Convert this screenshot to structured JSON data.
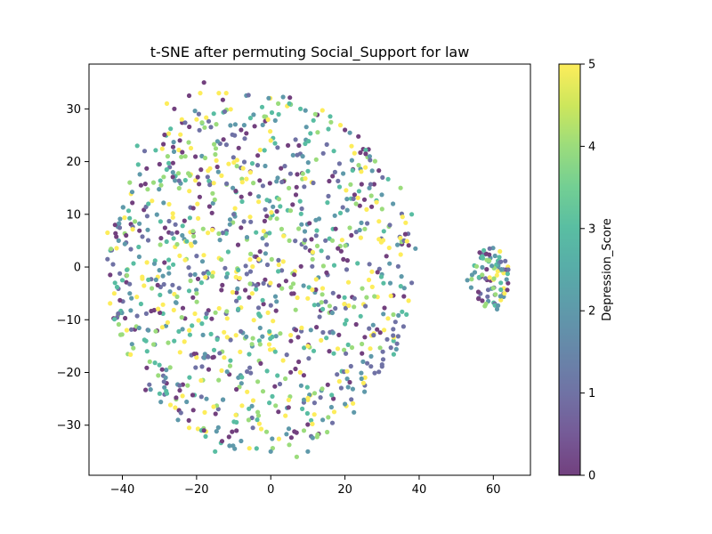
{
  "chart_data": {
    "type": "scatter",
    "title": "t-SNE after permuting Social_Support for law",
    "xlabel": "",
    "ylabel": "",
    "xlim": [
      -49,
      70
    ],
    "ylim": [
      -39.5,
      38.5
    ],
    "x_ticks": [
      -40,
      -20,
      0,
      20,
      40,
      60
    ],
    "y_ticks": [
      -30,
      -20,
      -10,
      0,
      10,
      20,
      30
    ],
    "grid": false,
    "colorbar": {
      "label": "Depression_Score",
      "colormap": "viridis",
      "range": [
        0,
        5
      ],
      "ticks": [
        0,
        1,
        2,
        3,
        4,
        5
      ]
    },
    "marker_alpha": 0.75,
    "clusters": [
      {
        "name": "main",
        "center": [
          -3,
          -1
        ],
        "rx": 41,
        "ry": 34,
        "count": 1050
      },
      {
        "name": "right",
        "center": [
          59,
          -2
        ],
        "rx": 5.5,
        "ry": 6,
        "count": 75
      }
    ],
    "points": [
      [
        -44,
        6.5,
        5
      ],
      [
        -44,
        1.5,
        1
      ],
      [
        -42,
        -3,
        3
      ],
      [
        -41,
        5,
        2
      ],
      [
        -40,
        -2.5,
        3
      ],
      [
        -39,
        6,
        0
      ],
      [
        -36,
        23,
        3
      ],
      [
        -35,
        15.5,
        0
      ],
      [
        -34,
        22,
        1
      ],
      [
        -33,
        12,
        3
      ],
      [
        -28,
        31,
        5
      ],
      [
        -26,
        30,
        0
      ],
      [
        -22,
        32.5,
        0
      ],
      [
        -19,
        33,
        5
      ],
      [
        -18,
        35,
        0
      ],
      [
        -14,
        33,
        5
      ],
      [
        -12,
        33,
        5
      ],
      [
        -20,
        28,
        5
      ],
      [
        -8,
        26,
        0
      ],
      [
        0,
        24,
        5
      ],
      [
        2,
        31,
        4
      ],
      [
        5,
        31,
        3
      ],
      [
        8,
        30,
        3
      ],
      [
        12,
        29,
        4
      ],
      [
        20,
        26,
        0
      ],
      [
        17,
        22,
        3
      ],
      [
        23,
        12,
        4
      ],
      [
        30,
        11,
        4
      ],
      [
        35,
        15,
        4
      ],
      [
        38,
        10,
        3
      ],
      [
        39,
        3.5,
        2
      ],
      [
        38,
        -3,
        1
      ],
      [
        36,
        -4,
        2
      ],
      [
        30,
        -18.5,
        1
      ],
      [
        25,
        -22,
        5
      ],
      [
        20,
        -26,
        2
      ],
      [
        14,
        -29,
        2
      ],
      [
        10,
        -35,
        2
      ],
      [
        7,
        -36,
        4
      ],
      [
        0,
        -35,
        2
      ],
      [
        -8,
        -33,
        2
      ],
      [
        -15,
        -35,
        3
      ],
      [
        -18,
        -31,
        0
      ],
      [
        -22,
        -30.5,
        5
      ],
      [
        -25,
        -29,
        2
      ],
      [
        -28,
        -24,
        3
      ],
      [
        -33,
        -12,
        2
      ],
      [
        -35,
        -7,
        3
      ],
      [
        -38,
        -5,
        2
      ],
      [
        14,
        -8,
        3
      ],
      [
        -5,
        -5,
        5
      ],
      [
        5,
        5,
        4
      ],
      [
        -10,
        10,
        1
      ],
      [
        10,
        -15,
        5
      ],
      [
        -20,
        -5,
        4
      ],
      [
        59,
        3.5,
        1
      ],
      [
        57,
        2,
        3
      ],
      [
        62,
        1,
        1
      ],
      [
        55,
        -1,
        2
      ],
      [
        64,
        -0.5,
        1
      ],
      [
        53,
        -2.5,
        2
      ],
      [
        60,
        -4,
        4
      ],
      [
        63,
        -5,
        5
      ],
      [
        58,
        -7,
        4
      ],
      [
        61,
        -8,
        2
      ],
      [
        56,
        -6,
        0
      ],
      [
        59,
        -2,
        5
      ],
      [
        57,
        -1.5,
        4
      ],
      [
        62,
        -3,
        3
      ]
    ]
  }
}
